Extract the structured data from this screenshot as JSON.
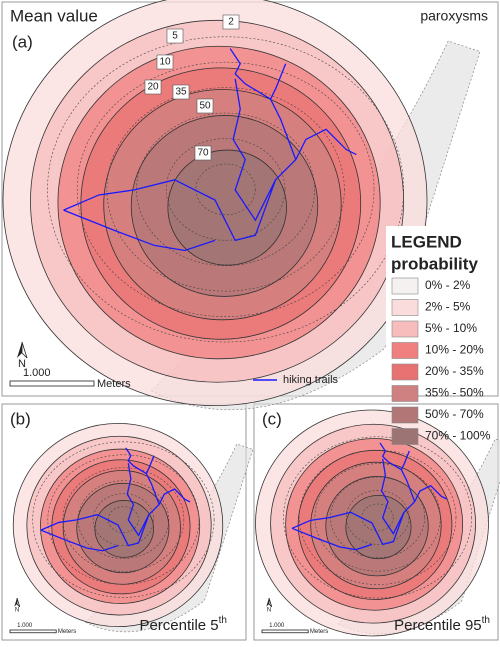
{
  "panel_a": {
    "title": "Mean value",
    "letter": "(a)",
    "corner_label": "paroxysms",
    "contour_labels": [
      "2",
      "5",
      "10",
      "20",
      "35",
      "50",
      "70"
    ],
    "legend": {
      "title": "LEGEND",
      "subtitle": "probability",
      "items": [
        {
          "label": "0% - 2%",
          "color": "#f5f1f1"
        },
        {
          "label": "2% - 5%",
          "color": "#fadcdc"
        },
        {
          "label": "5% - 10%",
          "color": "#f7bcbc"
        },
        {
          "label": "10% - 20%",
          "color": "#f08080"
        },
        {
          "label": "20% - 35%",
          "color": "#e87272"
        },
        {
          "label": "35% - 50%",
          "color": "#cf8181"
        },
        {
          "label": "50% - 70%",
          "color": "#b27676"
        },
        {
          "label": "70% - 100%",
          "color": "#9c7474"
        }
      ]
    },
    "north": "N",
    "scale_value": "1.000",
    "scale_unit": "Meters",
    "trails_label": "hiking trails"
  },
  "panel_b": {
    "letter": "(b)",
    "caption": "Percentile 5",
    "superscript": "th",
    "north": "N",
    "scale_value": "1.000",
    "scale_unit": "Meters"
  },
  "panel_c": {
    "letter": "(c)",
    "caption": "Percentile 95",
    "superscript": "th",
    "north": "N",
    "scale_value": "1.000",
    "scale_unit": "Meters"
  }
}
